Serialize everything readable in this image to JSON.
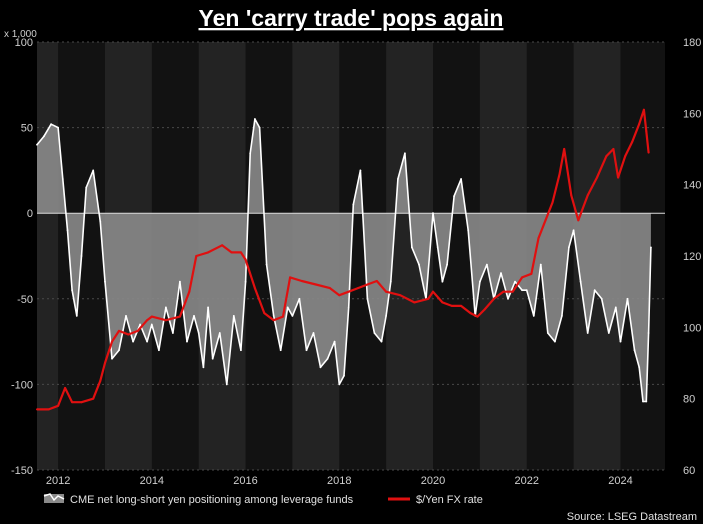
{
  "chart_data": {
    "type": "line",
    "title": "Yen 'carry trade' pops again",
    "left_axis_unit": "x 1,000",
    "source": "Source: LSEG Datastream",
    "xlim": [
      2011.55,
      2024.95
    ],
    "ylim_left": [
      -150,
      100
    ],
    "ylim_right": [
      60,
      180
    ],
    "x_ticks": [
      "2012",
      "2014",
      "2016",
      "2018",
      "2020",
      "2022",
      "2024"
    ],
    "x_tick_values": [
      2012,
      2014,
      2016,
      2018,
      2020,
      2022,
      2024
    ],
    "y_ticks_left": [
      "100",
      "50",
      "0",
      "-50",
      "-100",
      "-150"
    ],
    "y_tick_values_left": [
      100,
      50,
      0,
      -50,
      -100,
      -150
    ],
    "y_ticks_right": [
      "180",
      "160",
      "140",
      "120",
      "100",
      "80",
      "60"
    ],
    "y_tick_values_right": [
      180,
      160,
      140,
      120,
      100,
      80,
      60
    ],
    "shaded_years": [
      [
        2012,
        2013
      ],
      [
        2014,
        2015
      ],
      [
        2016,
        2017
      ],
      [
        2018,
        2019
      ],
      [
        2020,
        2021
      ],
      [
        2022,
        2023
      ],
      [
        2024,
        2025
      ]
    ],
    "colors": {
      "positioning": "#ffffff",
      "positioning_fill": "#8a8a8a",
      "fx": "#e01010"
    },
    "series": [
      {
        "name": "CME net long-short yen positioning among leverage funds",
        "axis": "left",
        "x": [
          2011.55,
          2011.7,
          2011.85,
          2012.0,
          2012.1,
          2012.2,
          2012.3,
          2012.4,
          2012.5,
          2012.6,
          2012.75,
          2012.9,
          2013.0,
          2013.15,
          2013.3,
          2013.45,
          2013.6,
          2013.75,
          2013.9,
          2014.0,
          2014.15,
          2014.3,
          2014.45,
          2014.6,
          2014.75,
          2014.9,
          2015.0,
          2015.1,
          2015.2,
          2015.3,
          2015.45,
          2015.6,
          2015.75,
          2015.9,
          2016.0,
          2016.1,
          2016.2,
          2016.3,
          2016.45,
          2016.6,
          2016.75,
          2016.9,
          2017.0,
          2017.15,
          2017.3,
          2017.45,
          2017.6,
          2017.75,
          2017.9,
          2018.0,
          2018.1,
          2018.2,
          2018.3,
          2018.45,
          2018.6,
          2018.75,
          2018.9,
          2019.0,
          2019.1,
          2019.25,
          2019.4,
          2019.55,
          2019.7,
          2019.85,
          2020.0,
          2020.1,
          2020.2,
          2020.3,
          2020.45,
          2020.6,
          2020.75,
          2020.9,
          2021.0,
          2021.15,
          2021.3,
          2021.45,
          2021.6,
          2021.75,
          2021.9,
          2022.0,
          2022.15,
          2022.3,
          2022.45,
          2022.6,
          2022.75,
          2022.9,
          2023.0,
          2023.15,
          2023.3,
          2023.45,
          2023.6,
          2023.75,
          2023.9,
          2024.0,
          2024.15,
          2024.3,
          2024.4,
          2024.48,
          2024.55,
          2024.6,
          2024.65
        ],
        "values": [
          40,
          45,
          52,
          50,
          20,
          -10,
          -45,
          -60,
          -25,
          15,
          25,
          -5,
          -40,
          -85,
          -80,
          -60,
          -75,
          -65,
          -75,
          -65,
          -80,
          -55,
          -70,
          -40,
          -75,
          -60,
          -70,
          -90,
          -55,
          -85,
          -70,
          -100,
          -60,
          -80,
          -40,
          35,
          55,
          50,
          -30,
          -60,
          -80,
          -55,
          -60,
          -50,
          -80,
          -70,
          -90,
          -85,
          -75,
          -100,
          -95,
          -55,
          5,
          25,
          -50,
          -70,
          -75,
          -60,
          -40,
          20,
          35,
          -20,
          -30,
          -50,
          0,
          -20,
          -40,
          -30,
          10,
          20,
          -10,
          -60,
          -40,
          -30,
          -50,
          -35,
          -50,
          -40,
          -45,
          -45,
          -60,
          -30,
          -70,
          -75,
          -60,
          -20,
          -10,
          -40,
          -70,
          -45,
          -50,
          -70,
          -55,
          -75,
          -50,
          -80,
          -90,
          -110,
          -110,
          -70,
          -20
        ]
      },
      {
        "name": "$/Yen FX rate",
        "axis": "right",
        "x": [
          2011.55,
          2011.8,
          2012.0,
          2012.15,
          2012.3,
          2012.5,
          2012.75,
          2012.9,
          2013.0,
          2013.15,
          2013.3,
          2013.5,
          2013.7,
          2013.9,
          2014.0,
          2014.3,
          2014.6,
          2014.8,
          2014.95,
          2015.2,
          2015.5,
          2015.7,
          2015.9,
          2016.0,
          2016.2,
          2016.4,
          2016.6,
          2016.8,
          2016.95,
          2017.2,
          2017.5,
          2017.8,
          2018.0,
          2018.2,
          2018.4,
          2018.6,
          2018.8,
          2019.0,
          2019.3,
          2019.6,
          2019.9,
          2020.0,
          2020.2,
          2020.4,
          2020.6,
          2020.8,
          2020.95,
          2021.1,
          2021.3,
          2021.5,
          2021.7,
          2021.9,
          2022.1,
          2022.25,
          2022.4,
          2022.55,
          2022.7,
          2022.8,
          2022.95,
          2023.1,
          2023.3,
          2023.5,
          2023.7,
          2023.85,
          2023.95,
          2024.1,
          2024.25,
          2024.4,
          2024.5,
          2024.55,
          2024.6
        ],
        "values": [
          77,
          77,
          78,
          83,
          79,
          79,
          80,
          85,
          90,
          96,
          99,
          98,
          99,
          102,
          103,
          102,
          103,
          110,
          120,
          121,
          123,
          121,
          121,
          119,
          111,
          104,
          102,
          103,
          114,
          113,
          112,
          111,
          109,
          110,
          111,
          112,
          113,
          110,
          109,
          107,
          108,
          110,
          107,
          106,
          106,
          104,
          103,
          105,
          108,
          110,
          110,
          114,
          115,
          125,
          130,
          135,
          143,
          150,
          137,
          130,
          137,
          142,
          148,
          150,
          142,
          148,
          152,
          157,
          161,
          155,
          149
        ]
      }
    ]
  }
}
